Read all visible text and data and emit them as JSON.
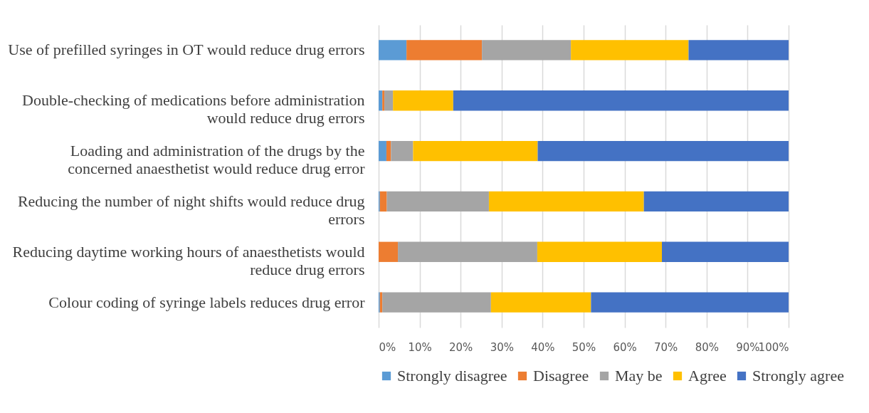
{
  "chart_data": {
    "type": "bar",
    "orientation": "horizontal",
    "stacked": true,
    "grid": "x",
    "legend": "bottom",
    "categories": [
      "Use of prefilled syringes in OT would reduce drug errors",
      "Double-checking of medications before administration would reduce drug errors",
      "Loading and administration of the drugs by the concerned anaesthetist would reduce drug error",
      "Reducing the number of night shifts would reduce drug errors",
      "Reducing daytime working hours of anaesthetists would reduce drug errors",
      "Colour coding of syringe labels reduces drug error"
    ],
    "series": [
      {
        "name": "Strongly disagree",
        "color": "#5b9bd5",
        "values": [
          6.8,
          0.9,
          1.9,
          0.3,
          0,
          0.3
        ]
      },
      {
        "name": "Disagree",
        "color": "#ed7d31",
        "values": [
          18.4,
          0.5,
          1.1,
          1.7,
          4.7,
          0.6
        ]
      },
      {
        "name": "May be",
        "color": "#a5a5a5",
        "values": [
          21.7,
          2.1,
          5.4,
          24.9,
          34,
          26.5
        ]
      },
      {
        "name": "Agree",
        "color": "#ffc000",
        "values": [
          28.7,
          14.7,
          30.4,
          37.8,
          30.4,
          24.4
        ]
      },
      {
        "name": "Strongly agree",
        "color": "#4472c4",
        "values": [
          24.4,
          81.8,
          61.2,
          35.3,
          30.9,
          48.2
        ]
      }
    ],
    "xlim": [
      0,
      100
    ],
    "xticks": [
      {
        "value": 0,
        "label": "0%"
      },
      {
        "value": 10,
        "label": "10%"
      },
      {
        "value": 20,
        "label": "20%"
      },
      {
        "value": 30,
        "label": "30%"
      },
      {
        "value": 40,
        "label": "40%"
      },
      {
        "value": 50,
        "label": "50%"
      },
      {
        "value": 60,
        "label": "60%"
      },
      {
        "value": 70,
        "label": "70%"
      },
      {
        "value": 80,
        "label": "80%"
      },
      {
        "value": 90,
        "label": "90%"
      },
      {
        "value": 100,
        "label": "100%"
      }
    ]
  }
}
